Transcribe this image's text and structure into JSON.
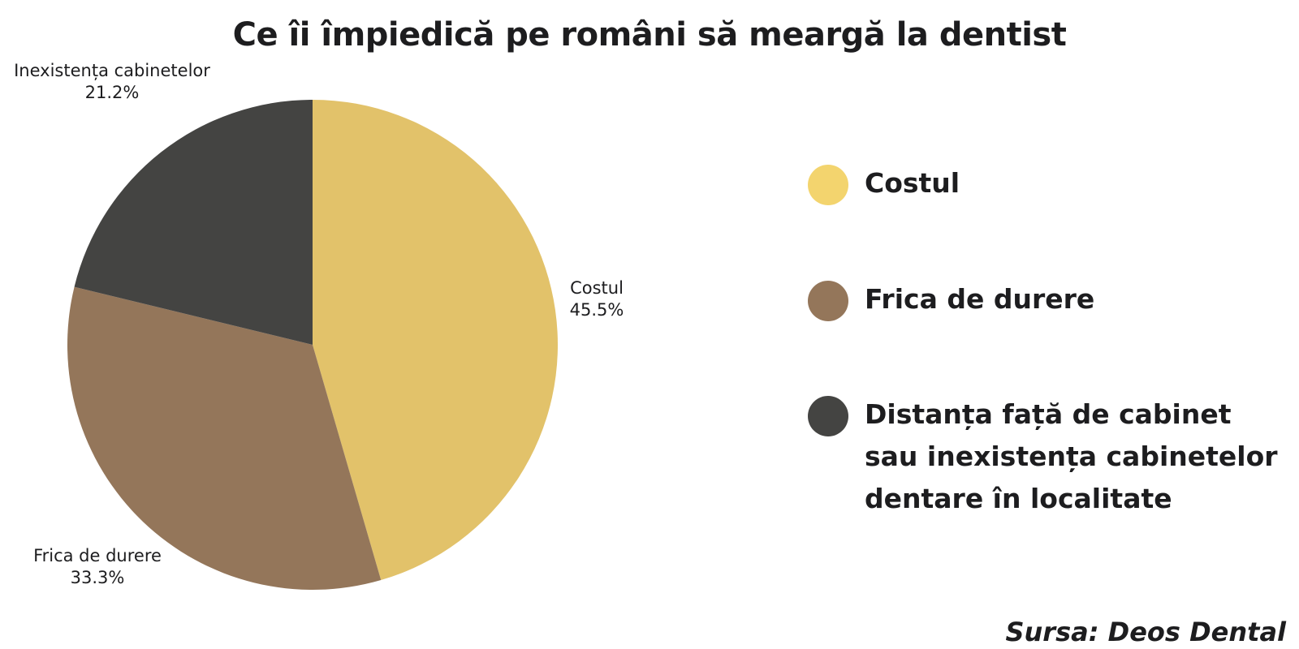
{
  "title": "Ce îi împiedică pe români să meargă la dentist",
  "source": "Sursa: Deos Dental",
  "chart_data": {
    "type": "pie",
    "title": "Ce îi împiedică pe români să meargă la dentist",
    "slices": [
      {
        "label": "Costul",
        "value": 45.5,
        "value_label": "45.5%",
        "color": "#E2C26A"
      },
      {
        "label": "Frica de durere",
        "value": 33.3,
        "value_label": "33.3%",
        "color": "#94765A"
      },
      {
        "label": "Inexistența cabinetelor",
        "value": 21.2,
        "value_label": "21.2%",
        "color": "#444442"
      }
    ],
    "legend": {
      "placement": "right",
      "entries": [
        {
          "label": "Costul",
          "color": "#F3D46E"
        },
        {
          "label": "Frica de durere",
          "color": "#94765A"
        },
        {
          "label": "Distanța față de cabinet sau inexistența cabinetelor dentare în localitate",
          "color": "#444442"
        }
      ]
    }
  }
}
